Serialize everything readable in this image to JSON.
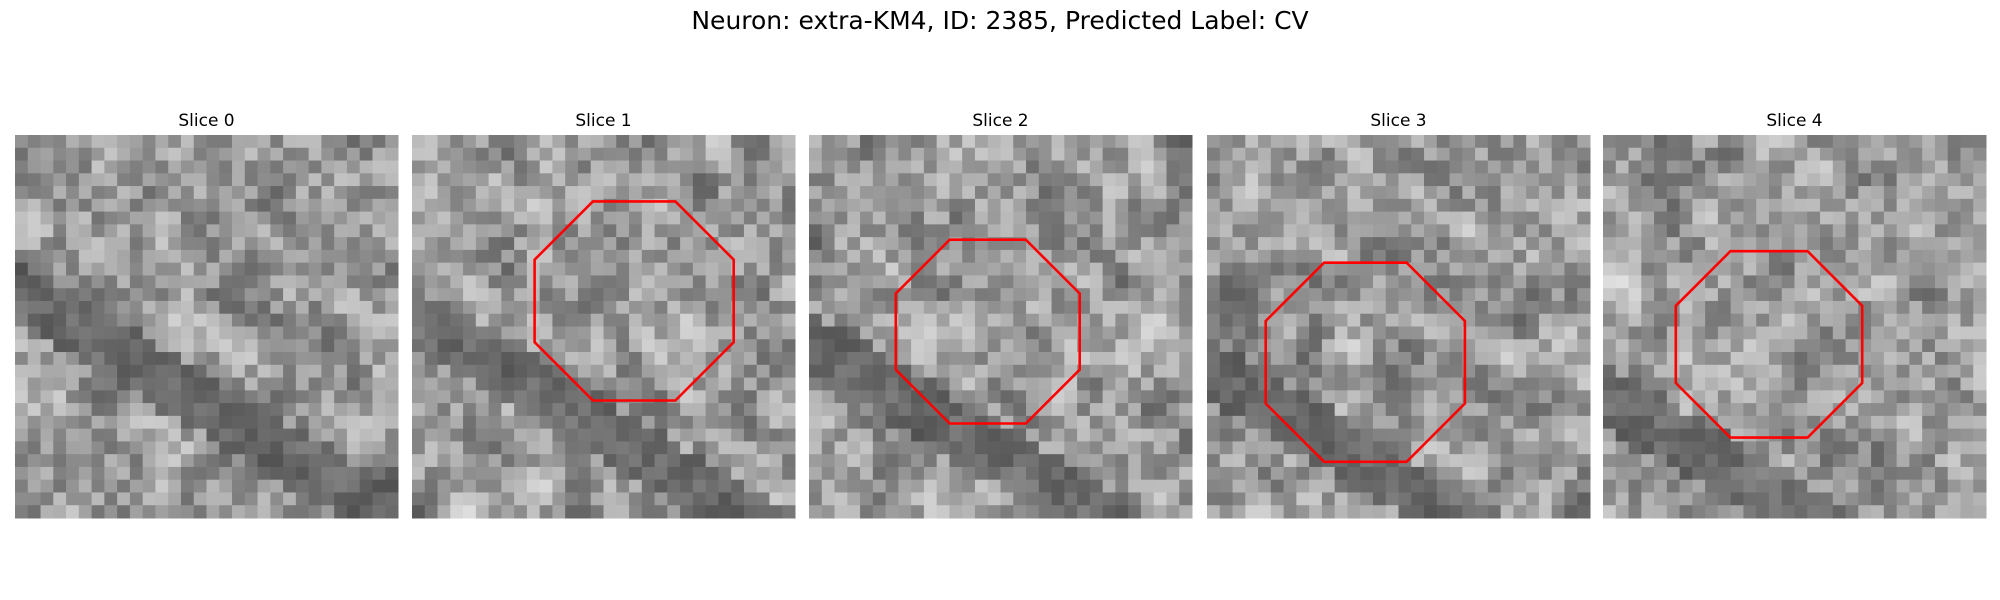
{
  "header": {
    "title": "Neuron: extra-KM4, ID: 2385, Predicted Label: CV"
  },
  "panels": [
    {
      "title": "Slice 0"
    },
    {
      "title": "Slice 1"
    },
    {
      "title": "Slice 2"
    },
    {
      "title": "Slice 3"
    },
    {
      "title": "Slice 4"
    }
  ]
}
